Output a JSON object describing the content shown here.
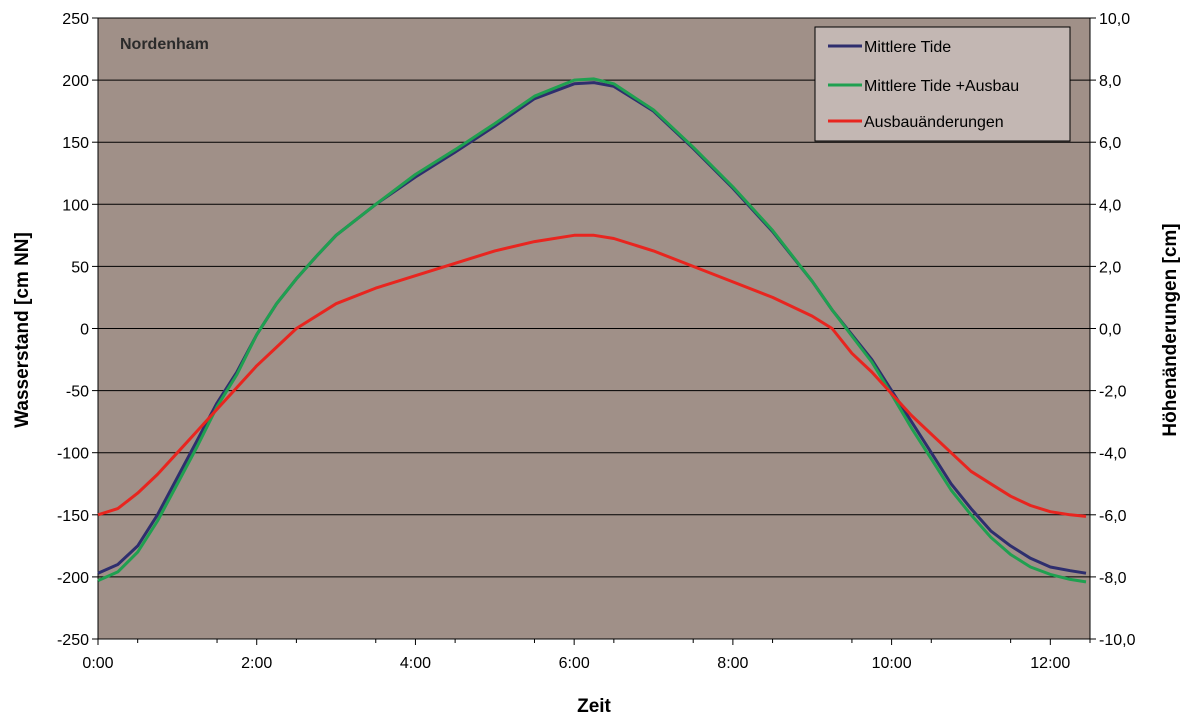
{
  "chart_data": {
    "type": "line",
    "panel_title": "Nordenham",
    "xlabel": "Zeit",
    "ylabel": "Wasserstand [cm NN]",
    "y2label": "Höhenänderungen [cm]",
    "x_ticks": [
      "0:00",
      "2:00",
      "4:00",
      "6:00",
      "8:00",
      "10:00",
      "12:00"
    ],
    "x_tick_hours": [
      0,
      2,
      4,
      6,
      8,
      10,
      12
    ],
    "xlim_hours": [
      0,
      12.5
    ],
    "ylim": [
      -250,
      250
    ],
    "y_ticks": [
      "250",
      "200",
      "150",
      "100",
      "50",
      "0",
      "-50",
      "-100",
      "-150",
      "-200",
      "-250"
    ],
    "y2lim": [
      -10,
      10
    ],
    "y2_ticks": [
      "10,0",
      "8,0",
      "6,0",
      "4,0",
      "2,0",
      "0,0",
      "-2,0",
      "-4,0",
      "-6,0",
      "-8,0",
      "-10,0"
    ],
    "plot_background": "#a09088",
    "grid": true,
    "legend_position": "top-right",
    "series": [
      {
        "name": "Mittlere Tide",
        "axis": "left",
        "color": "#2e2e6e",
        "x": [
          0,
          0.25,
          0.5,
          0.75,
          1,
          1.25,
          1.5,
          1.75,
          2,
          2.25,
          2.5,
          2.75,
          3,
          3.5,
          4,
          4.5,
          5,
          5.5,
          6,
          6.25,
          6.5,
          7,
          7.5,
          8,
          8.5,
          9,
          9.25,
          9.5,
          9.75,
          10,
          10.25,
          10.5,
          10.75,
          11,
          11.25,
          11.5,
          11.75,
          12,
          12.25,
          12.45
        ],
        "y": [
          -197,
          -190,
          -175,
          -150,
          -120,
          -90,
          -60,
          -35,
          -5,
          20,
          40,
          58,
          75,
          100,
          122,
          142,
          163,
          185,
          197,
          198,
          195,
          175,
          145,
          113,
          78,
          38,
          15,
          -5,
          -25,
          -50,
          -75,
          -100,
          -125,
          -145,
          -163,
          -175,
          -185,
          -192,
          -195,
          -197
        ]
      },
      {
        "name": "Mittlere Tide +Ausbau",
        "axis": "left",
        "color": "#1fa050",
        "x": [
          0,
          0.25,
          0.5,
          0.75,
          1,
          1.25,
          1.5,
          1.75,
          2,
          2.25,
          2.5,
          2.75,
          3,
          3.5,
          4,
          4.5,
          5,
          5.5,
          6,
          6.25,
          6.5,
          7,
          7.5,
          8,
          8.5,
          9,
          9.25,
          9.5,
          9.75,
          10,
          10.25,
          10.5,
          10.75,
          11,
          11.25,
          11.5,
          11.75,
          12,
          12.25,
          12.45
        ],
        "y": [
          -203,
          -196,
          -180,
          -155,
          -125,
          -95,
          -63,
          -37,
          -5,
          20,
          40,
          58,
          75,
          100,
          124,
          144,
          165,
          187,
          200,
          201,
          197,
          176,
          146,
          114,
          79,
          38,
          15,
          -6,
          -27,
          -53,
          -80,
          -105,
          -130,
          -150,
          -168,
          -182,
          -192,
          -198,
          -202,
          -204
        ]
      },
      {
        "name": "Ausbauänderungen",
        "axis": "right",
        "color": "#e8251f",
        "x": [
          0,
          0.25,
          0.5,
          0.75,
          1,
          1.25,
          1.5,
          1.75,
          2,
          2.25,
          2.5,
          3,
          3.5,
          4,
          4.5,
          5,
          5.5,
          6,
          6.25,
          6.5,
          7,
          7.5,
          8,
          8.5,
          9,
          9.25,
          9.5,
          9.75,
          10,
          10.25,
          10.5,
          10.75,
          11,
          11.25,
          11.5,
          11.75,
          12,
          12.25,
          12.45
        ],
        "y": [
          -6.0,
          -5.8,
          -5.3,
          -4.7,
          -4.0,
          -3.3,
          -2.6,
          -1.9,
          -1.2,
          -0.6,
          0.0,
          0.8,
          1.3,
          1.7,
          2.1,
          2.5,
          2.8,
          3.0,
          3.0,
          2.9,
          2.5,
          2.0,
          1.5,
          1.0,
          0.4,
          0.0,
          -0.8,
          -1.4,
          -2.1,
          -2.8,
          -3.4,
          -4.0,
          -4.6,
          -5.0,
          -5.4,
          -5.7,
          -5.9,
          -6.0,
          -6.05
        ]
      }
    ]
  }
}
